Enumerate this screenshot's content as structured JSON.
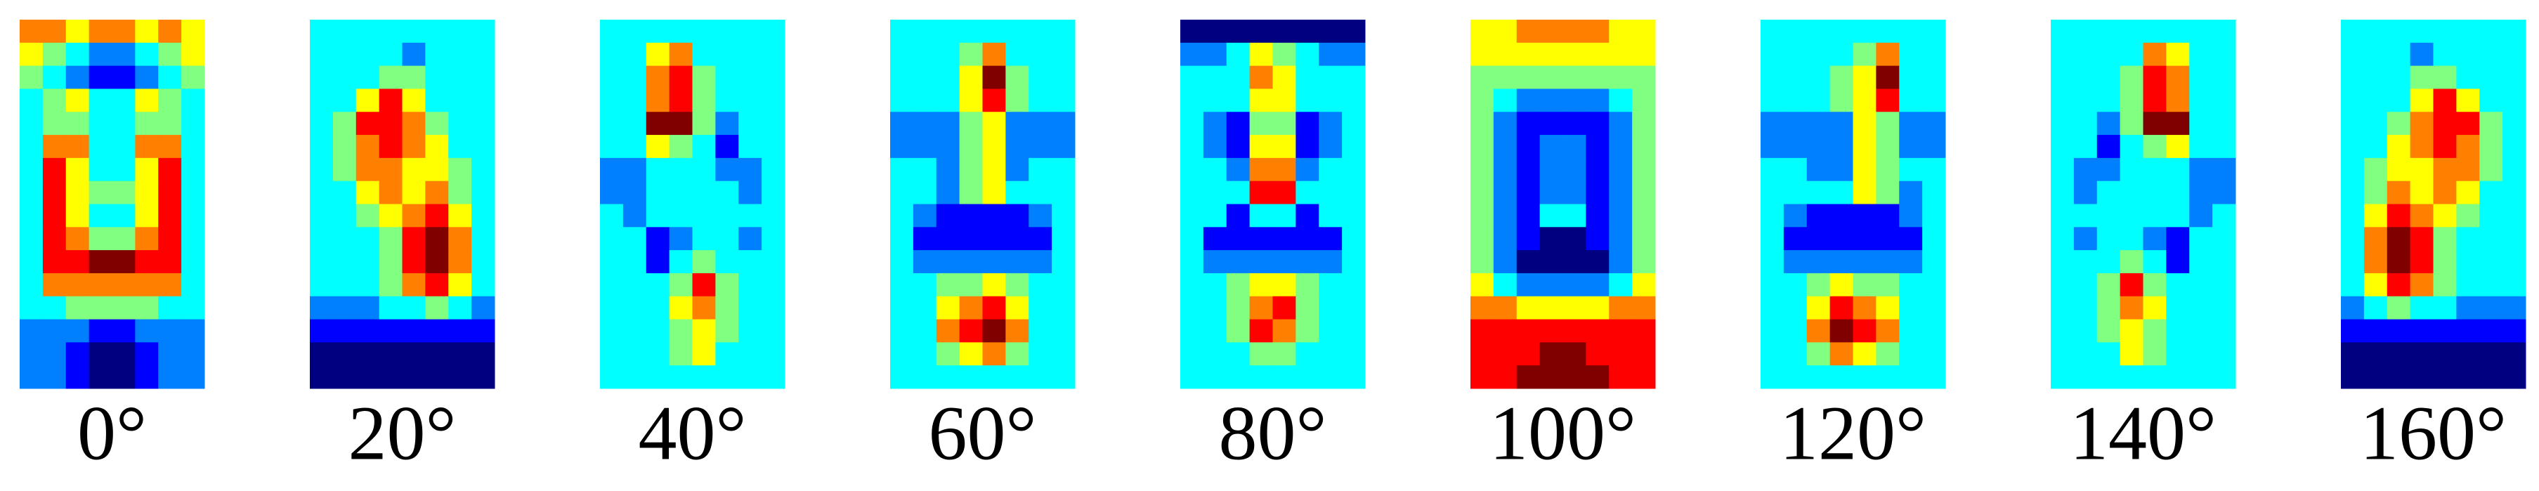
{
  "chart_data": [
    {
      "type": "heatmap",
      "colormap": "jet",
      "xlabel": "0°",
      "z": [
        [
          7,
          7,
          6,
          7,
          7,
          6,
          7,
          6
        ],
        [
          6,
          5,
          4,
          3,
          3,
          4,
          5,
          6
        ],
        [
          5,
          4,
          3,
          2,
          2,
          3,
          4,
          5
        ],
        [
          4,
          5,
          6,
          4,
          4,
          6,
          5,
          4
        ],
        [
          4,
          5,
          5,
          4,
          4,
          5,
          5,
          4
        ],
        [
          4,
          7,
          7,
          4,
          4,
          7,
          7,
          4
        ],
        [
          4,
          8,
          6,
          4,
          4,
          6,
          8,
          4
        ],
        [
          4,
          8,
          6,
          5,
          5,
          6,
          8,
          4
        ],
        [
          4,
          8,
          6,
          4,
          4,
          6,
          8,
          4
        ],
        [
          4,
          8,
          7,
          5,
          5,
          7,
          8,
          4
        ],
        [
          4,
          8,
          8,
          9,
          9,
          8,
          8,
          4
        ],
        [
          4,
          7,
          7,
          7,
          7,
          7,
          7,
          4
        ],
        [
          4,
          4,
          5,
          5,
          5,
          5,
          4,
          4
        ],
        [
          3,
          3,
          3,
          2,
          2,
          3,
          3,
          3
        ],
        [
          3,
          3,
          2,
          1,
          1,
          2,
          3,
          3
        ],
        [
          3,
          3,
          2,
          1,
          1,
          2,
          3,
          3
        ]
      ]
    },
    {
      "type": "heatmap",
      "colormap": "jet",
      "xlabel": "20°",
      "z": [
        [
          4,
          4,
          4,
          4,
          4,
          4,
          4,
          4
        ],
        [
          4,
          4,
          4,
          4,
          3,
          4,
          4,
          4
        ],
        [
          4,
          4,
          4,
          5,
          5,
          4,
          4,
          4
        ],
        [
          4,
          4,
          6,
          8,
          6,
          4,
          4,
          4
        ],
        [
          4,
          5,
          8,
          8,
          7,
          5,
          4,
          4
        ],
        [
          4,
          5,
          7,
          8,
          7,
          6,
          4,
          4
        ],
        [
          4,
          5,
          7,
          7,
          6,
          6,
          5,
          4
        ],
        [
          4,
          4,
          6,
          7,
          6,
          7,
          5,
          4
        ],
        [
          4,
          4,
          5,
          6,
          7,
          8,
          6,
          4
        ],
        [
          4,
          4,
          4,
          5,
          8,
          9,
          7,
          4
        ],
        [
          4,
          4,
          4,
          5,
          8,
          9,
          7,
          4
        ],
        [
          4,
          4,
          4,
          5,
          7,
          8,
          6,
          4
        ],
        [
          3,
          3,
          3,
          4,
          4,
          5,
          4,
          3
        ],
        [
          2,
          2,
          2,
          2,
          2,
          2,
          2,
          2
        ],
        [
          1,
          1,
          1,
          1,
          1,
          1,
          1,
          1
        ],
        [
          1,
          1,
          1,
          1,
          1,
          1,
          1,
          1
        ]
      ]
    },
    {
      "type": "heatmap",
      "colormap": "jet",
      "xlabel": "40°",
      "z": [
        [
          4,
          4,
          4,
          4,
          4,
          4,
          4,
          4
        ],
        [
          4,
          4,
          6,
          7,
          4,
          4,
          4,
          4
        ],
        [
          4,
          4,
          7,
          8,
          5,
          4,
          4,
          4
        ],
        [
          4,
          4,
          7,
          8,
          5,
          4,
          4,
          4
        ],
        [
          4,
          4,
          9,
          9,
          5,
          3,
          4,
          4
        ],
        [
          4,
          4,
          6,
          5,
          4,
          2,
          4,
          4
        ],
        [
          3,
          3,
          4,
          4,
          4,
          3,
          3,
          4
        ],
        [
          3,
          3,
          4,
          4,
          4,
          4,
          3,
          4
        ],
        [
          4,
          3,
          4,
          4,
          4,
          4,
          4,
          4
        ],
        [
          4,
          4,
          2,
          3,
          4,
          4,
          3,
          4
        ],
        [
          4,
          4,
          2,
          4,
          5,
          4,
          4,
          4
        ],
        [
          4,
          4,
          4,
          5,
          8,
          5,
          4,
          4
        ],
        [
          4,
          4,
          4,
          6,
          7,
          5,
          4,
          4
        ],
        [
          4,
          4,
          4,
          5,
          6,
          5,
          4,
          4
        ],
        [
          4,
          4,
          4,
          5,
          6,
          4,
          4,
          4
        ],
        [
          4,
          4,
          4,
          4,
          4,
          4,
          4,
          4
        ]
      ]
    },
    {
      "type": "heatmap",
      "colormap": "jet",
      "xlabel": "60°",
      "z": [
        [
          4,
          4,
          4,
          4,
          4,
          4,
          4,
          4
        ],
        [
          4,
          4,
          4,
          5,
          7,
          4,
          4,
          4
        ],
        [
          4,
          4,
          4,
          6,
          9,
          5,
          4,
          4
        ],
        [
          4,
          4,
          4,
          6,
          8,
          5,
          4,
          4
        ],
        [
          3,
          3,
          3,
          5,
          6,
          3,
          3,
          3
        ],
        [
          3,
          3,
          3,
          5,
          6,
          3,
          3,
          3
        ],
        [
          4,
          4,
          3,
          5,
          6,
          3,
          4,
          4
        ],
        [
          4,
          4,
          3,
          5,
          6,
          4,
          4,
          4
        ],
        [
          4,
          3,
          2,
          2,
          2,
          2,
          3,
          4
        ],
        [
          4,
          2,
          2,
          2,
          2,
          2,
          2,
          4
        ],
        [
          4,
          3,
          3,
          3,
          3,
          3,
          3,
          4
        ],
        [
          4,
          4,
          5,
          5,
          6,
          5,
          4,
          4
        ],
        [
          4,
          4,
          6,
          7,
          8,
          6,
          4,
          4
        ],
        [
          4,
          4,
          7,
          8,
          9,
          7,
          4,
          4
        ],
        [
          4,
          4,
          5,
          6,
          7,
          5,
          4,
          4
        ],
        [
          4,
          4,
          4,
          4,
          4,
          4,
          4,
          4
        ]
      ]
    },
    {
      "type": "heatmap",
      "colormap": "jet",
      "xlabel": "80°",
      "z": [
        [
          1,
          1,
          1,
          1,
          1,
          1,
          1,
          1
        ],
        [
          3,
          3,
          4,
          6,
          5,
          4,
          3,
          3
        ],
        [
          4,
          4,
          4,
          7,
          6,
          4,
          4,
          4
        ],
        [
          4,
          4,
          4,
          6,
          6,
          4,
          4,
          4
        ],
        [
          4,
          3,
          2,
          5,
          5,
          2,
          3,
          4
        ],
        [
          4,
          3,
          2,
          6,
          6,
          2,
          3,
          4
        ],
        [
          4,
          4,
          3,
          7,
          7,
          3,
          4,
          4
        ],
        [
          4,
          4,
          4,
          8,
          8,
          4,
          4,
          4
        ],
        [
          4,
          4,
          2,
          4,
          4,
          2,
          4,
          4
        ],
        [
          4,
          2,
          2,
          2,
          2,
          2,
          2,
          4
        ],
        [
          4,
          3,
          3,
          3,
          3,
          3,
          3,
          4
        ],
        [
          4,
          4,
          5,
          6,
          6,
          5,
          4,
          4
        ],
        [
          4,
          4,
          5,
          7,
          8,
          5,
          4,
          4
        ],
        [
          4,
          4,
          5,
          8,
          7,
          5,
          4,
          4
        ],
        [
          4,
          4,
          4,
          5,
          5,
          4,
          4,
          4
        ],
        [
          4,
          4,
          4,
          4,
          4,
          4,
          4,
          4
        ]
      ]
    },
    {
      "type": "heatmap",
      "colormap": "jet",
      "xlabel": "100°",
      "z": [
        [
          6,
          6,
          7,
          7,
          7,
          7,
          6,
          6
        ],
        [
          6,
          6,
          6,
          6,
          6,
          6,
          6,
          6
        ],
        [
          5,
          5,
          5,
          5,
          5,
          5,
          5,
          5
        ],
        [
          5,
          4,
          3,
          3,
          3,
          3,
          4,
          5
        ],
        [
          5,
          3,
          2,
          2,
          2,
          2,
          3,
          5
        ],
        [
          5,
          3,
          2,
          3,
          3,
          2,
          3,
          5
        ],
        [
          5,
          3,
          2,
          3,
          3,
          2,
          3,
          5
        ],
        [
          5,
          3,
          2,
          3,
          3,
          2,
          3,
          5
        ],
        [
          5,
          3,
          2,
          4,
          4,
          2,
          3,
          5
        ],
        [
          5,
          3,
          2,
          1,
          1,
          2,
          3,
          5
        ],
        [
          5,
          3,
          1,
          1,
          1,
          1,
          3,
          5
        ],
        [
          6,
          4,
          3,
          3,
          3,
          3,
          4,
          6
        ],
        [
          7,
          7,
          6,
          6,
          6,
          6,
          7,
          7
        ],
        [
          8,
          8,
          8,
          8,
          8,
          8,
          8,
          8
        ],
        [
          8,
          8,
          8,
          9,
          9,
          8,
          8,
          8
        ],
        [
          8,
          8,
          9,
          9,
          9,
          9,
          8,
          8
        ]
      ]
    },
    {
      "type": "heatmap",
      "colormap": "jet",
      "xlabel": "120°",
      "z": [
        [
          4,
          4,
          4,
          4,
          4,
          4,
          4,
          4
        ],
        [
          4,
          4,
          4,
          4,
          5,
          7,
          4,
          4
        ],
        [
          4,
          4,
          4,
          5,
          6,
          9,
          4,
          4
        ],
        [
          4,
          4,
          4,
          5,
          6,
          8,
          4,
          4
        ],
        [
          3,
          3,
          3,
          3,
          6,
          5,
          3,
          3
        ],
        [
          3,
          3,
          3,
          3,
          6,
          5,
          3,
          3
        ],
        [
          4,
          4,
          3,
          3,
          6,
          5,
          4,
          4
        ],
        [
          4,
          4,
          4,
          4,
          6,
          5,
          3,
          4
        ],
        [
          4,
          3,
          2,
          2,
          2,
          2,
          3,
          4
        ],
        [
          4,
          2,
          2,
          2,
          2,
          2,
          2,
          4
        ],
        [
          4,
          3,
          3,
          3,
          3,
          3,
          3,
          4
        ],
        [
          4,
          4,
          5,
          6,
          5,
          5,
          4,
          4
        ],
        [
          4,
          4,
          6,
          8,
          7,
          6,
          4,
          4
        ],
        [
          4,
          4,
          7,
          9,
          8,
          7,
          4,
          4
        ],
        [
          4,
          4,
          5,
          7,
          6,
          5,
          4,
          4
        ],
        [
          4,
          4,
          4,
          4,
          4,
          4,
          4,
          4
        ]
      ]
    },
    {
      "type": "heatmap",
      "colormap": "jet",
      "xlabel": "140°",
      "z": [
        [
          4,
          4,
          4,
          4,
          4,
          4,
          4,
          4
        ],
        [
          4,
          4,
          4,
          4,
          7,
          6,
          4,
          4
        ],
        [
          4,
          4,
          4,
          5,
          8,
          7,
          4,
          4
        ],
        [
          4,
          4,
          4,
          5,
          8,
          7,
          4,
          4
        ],
        [
          4,
          4,
          3,
          5,
          9,
          9,
          4,
          4
        ],
        [
          4,
          4,
          2,
          4,
          5,
          6,
          4,
          4
        ],
        [
          4,
          3,
          3,
          4,
          4,
          4,
          3,
          3
        ],
        [
          4,
          3,
          4,
          4,
          4,
          4,
          3,
          3
        ],
        [
          4,
          4,
          4,
          4,
          4,
          4,
          3,
          4
        ],
        [
          4,
          3,
          4,
          4,
          3,
          2,
          4,
          4
        ],
        [
          4,
          4,
          4,
          5,
          4,
          2,
          4,
          4
        ],
        [
          4,
          4,
          5,
          8,
          5,
          4,
          4,
          4
        ],
        [
          4,
          4,
          5,
          7,
          6,
          4,
          4,
          4
        ],
        [
          4,
          4,
          5,
          6,
          5,
          4,
          4,
          4
        ],
        [
          4,
          4,
          4,
          6,
          5,
          4,
          4,
          4
        ],
        [
          4,
          4,
          4,
          4,
          4,
          4,
          4,
          4
        ]
      ]
    },
    {
      "type": "heatmap",
      "colormap": "jet",
      "xlabel": "160°",
      "z": [
        [
          4,
          4,
          4,
          4,
          4,
          4,
          4,
          4
        ],
        [
          4,
          4,
          4,
          3,
          4,
          4,
          4,
          4
        ],
        [
          4,
          4,
          4,
          5,
          5,
          4,
          4,
          4
        ],
        [
          4,
          4,
          4,
          6,
          8,
          6,
          4,
          4
        ],
        [
          4,
          4,
          5,
          7,
          8,
          8,
          5,
          4
        ],
        [
          4,
          4,
          6,
          7,
          8,
          7,
          5,
          4
        ],
        [
          4,
          5,
          6,
          6,
          7,
          7,
          5,
          4
        ],
        [
          4,
          5,
          7,
          6,
          7,
          6,
          4,
          4
        ],
        [
          4,
          6,
          8,
          7,
          6,
          5,
          4,
          4
        ],
        [
          4,
          7,
          9,
          8,
          5,
          4,
          4,
          4
        ],
        [
          4,
          7,
          9,
          8,
          5,
          4,
          4,
          4
        ],
        [
          4,
          6,
          8,
          7,
          5,
          4,
          4,
          4
        ],
        [
          3,
          4,
          5,
          4,
          4,
          3,
          3,
          3
        ],
        [
          2,
          2,
          2,
          2,
          2,
          2,
          2,
          2
        ],
        [
          1,
          1,
          1,
          1,
          1,
          1,
          1,
          1
        ],
        [
          1,
          1,
          1,
          1,
          1,
          1,
          1,
          1
        ]
      ]
    }
  ]
}
